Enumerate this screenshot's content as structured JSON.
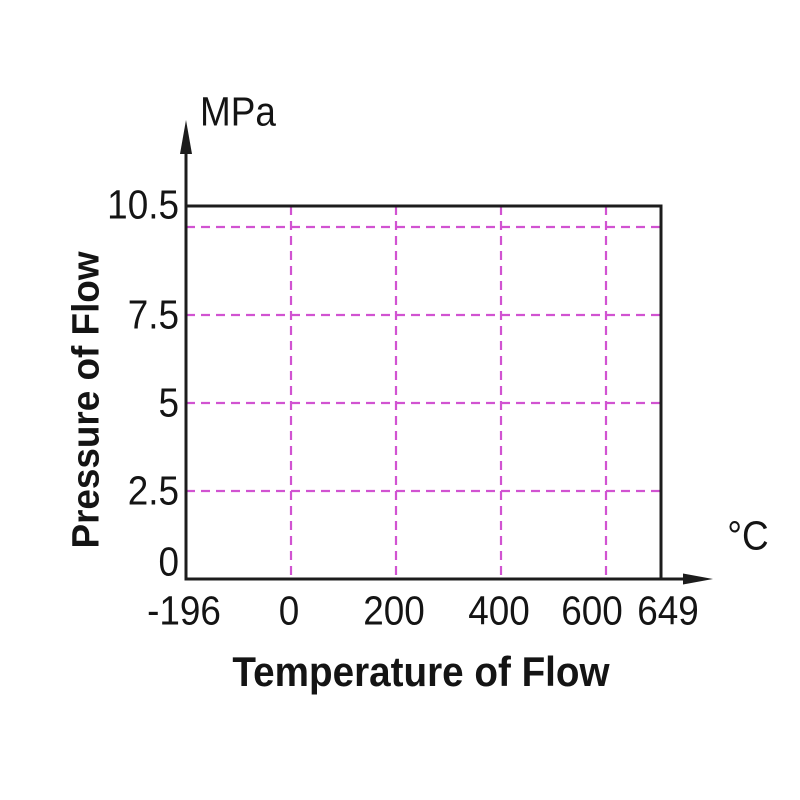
{
  "chart_data": {
    "type": "area",
    "title": "",
    "xlabel": "Temperature of Flow",
    "ylabel": "Pressure of Flow",
    "x_unit": "°C",
    "y_unit": "MPa",
    "xlim": [
      -196,
      649
    ],
    "ylim": [
      0,
      10.5
    ],
    "x_tick_labels": [
      "-196",
      "0",
      "200",
      "400",
      "600",
      "649"
    ],
    "y_tick_labels": [
      "10.5",
      "7.5",
      "5",
      "2.5",
      "0"
    ],
    "x_gridline_values": [
      0,
      200,
      400,
      600
    ],
    "y_gridline_values": [
      2.5,
      5,
      7.5,
      10
    ],
    "region": {
      "description": "operating envelope rectangle",
      "x_range_c": [
        -196,
        649
      ],
      "y_range_mpa": [
        0,
        10.5
      ]
    },
    "grid_style": "dashed",
    "legend": "none",
    "colors": {
      "grid": "#d153d1",
      "axis": "#1c1c1c",
      "background": "#ffffff"
    }
  }
}
